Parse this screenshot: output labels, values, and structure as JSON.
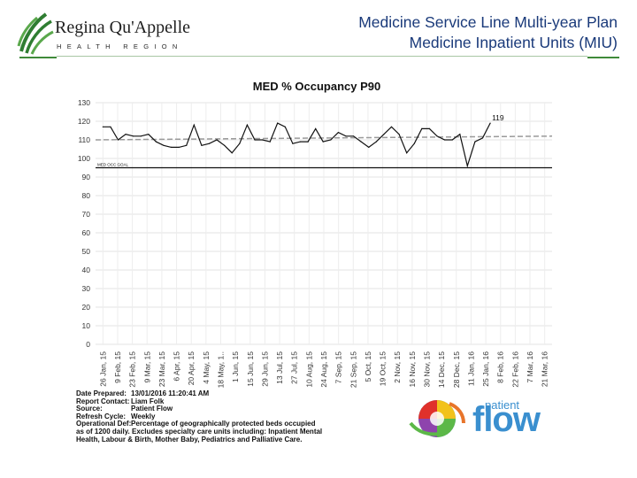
{
  "header": {
    "org_name": "Regina Qu'Appelle",
    "org_sub": "HEALTH REGION",
    "title_line1": "Medicine Service Line Multi-year Plan",
    "title_line2": "Medicine Inpatient Units (MIU)"
  },
  "colors": {
    "title": "#1a3a7a",
    "rule": "#3f8a3a",
    "series": "#111111",
    "trend": "#9a9a9a",
    "goal": "#111111"
  },
  "chart_data": {
    "type": "line",
    "title": "MED % Occupancy P90",
    "ylim": [
      0,
      130
    ],
    "y_ticks": [
      0,
      10,
      20,
      30,
      40,
      50,
      60,
      70,
      80,
      90,
      100,
      110,
      120,
      130
    ],
    "x_ticks": [
      "26 Jan, 15",
      "9 Feb, 15",
      "23 Feb, 15",
      "9 Mar, 15",
      "23 Mar, 15",
      "6 Apr, 15",
      "20 Apr, 15",
      "4 May, 15",
      "18 May, 1..",
      "1 Jun, 15",
      "15 Jun, 15",
      "29 Jun, 15",
      "13 Jul, 15",
      "27 Jul, 15",
      "10 Aug, 15",
      "24 Aug, 15",
      "7 Sep, 15",
      "21 Sep, 15",
      "5 Oct, 15",
      "19 Oct, 15",
      "2 Nov, 15",
      "16 Nov, 15",
      "30 Nov, 15",
      "14 Dec, 15",
      "28 Dec, 15",
      "11 Jan, 16",
      "25 Jan, 16",
      "8 Feb, 16",
      "22 Feb, 16",
      "7 Mar, 16",
      "21 Mar, 16"
    ],
    "grid": true,
    "series": [
      {
        "values": [
          117,
          117,
          110,
          113,
          112,
          112,
          113,
          109,
          107,
          106,
          106,
          107,
          118,
          107,
          108,
          110,
          107,
          103,
          108,
          118,
          110,
          110,
          109,
          119,
          117,
          108,
          109,
          109,
          116,
          109,
          110,
          114,
          112,
          112,
          109,
          106,
          109,
          113,
          117,
          113,
          103,
          108,
          116,
          116,
          112,
          110,
          110,
          113,
          96,
          109,
          111,
          119
        ]
      }
    ],
    "last_value_label": "119",
    "trend_line": {
      "start": 110,
      "end": 112
    },
    "goal": {
      "value": 95,
      "label": "MED OCC GOAL"
    }
  },
  "meta": {
    "rows": [
      {
        "label": "Date Prepared:",
        "value": "13/01/2016 11:20:41 AM"
      },
      {
        "label": "Report Contact:",
        "value": "Liam Folk"
      },
      {
        "label": "Source:",
        "value": "Patient Flow"
      },
      {
        "label": "Refresh Cycle:",
        "value": "Weekly"
      },
      {
        "label": "Operational Def:",
        "value": "Percentage of geographically protected beds occupied"
      }
    ],
    "def_line2": "as of 1200 daily.  Excludes specialty care units including: Inpatient Mental",
    "def_line3": "Health, Labour & Birth, Mother Baby, Pediatrics and Palliative Care."
  },
  "footer_logo": {
    "patient": "patient",
    "flow": "flow"
  }
}
